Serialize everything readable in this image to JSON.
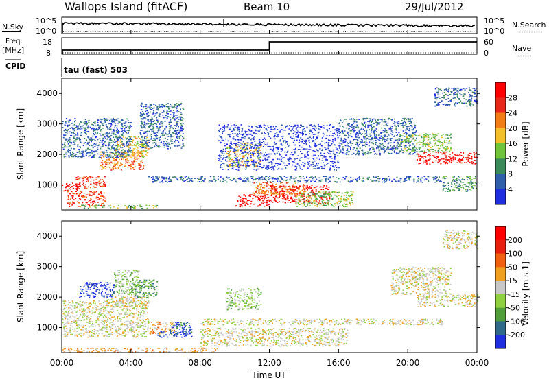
{
  "header": {
    "station": "Wallops Island (fitACF)",
    "beam": "Beam 10",
    "date": "29/Jul/2012"
  },
  "status_panels": {
    "nsky": {
      "label": "N.Sky",
      "left_ticks": [
        "10^5",
        "10^0"
      ],
      "right_label": "N.Search",
      "right_ticks": [
        "10^5",
        "10^0"
      ]
    },
    "freq": {
      "label": "Freq.",
      "unit": "[MHz]",
      "left_ticks": [
        "18",
        "8"
      ],
      "right_label": "Nave",
      "right_ticks": [
        "60",
        "0"
      ]
    },
    "cpid": {
      "label": "CPID",
      "value": "tau (fast) 503"
    }
  },
  "x_axis": {
    "label": "Time UT",
    "ticks": [
      "00:00",
      "04:00",
      "08:00",
      "12:00",
      "16:00",
      "20:00",
      "00:00"
    ]
  },
  "chart_data": [
    {
      "type": "heatmap",
      "name": "power",
      "ylabel": "Slant Range [km]",
      "yticks": [
        "1000",
        "2000",
        "3000",
        "4000"
      ],
      "ylim": [
        180,
        4500
      ],
      "xlim": [
        0,
        24
      ],
      "colorbar": {
        "label": "Power [dB]",
        "ticks": [
          "4",
          "8",
          "12",
          "16",
          "20",
          "24",
          "28"
        ],
        "colors": [
          "#1f2fe0",
          "#2f5fa8",
          "#3a8a5a",
          "#6fc43a",
          "#f2c02a",
          "#f07d16",
          "#e8281a",
          "#ff0000"
        ]
      },
      "frequency_mhz": [
        [
          0,
          10.5
        ],
        [
          12,
          15.5
        ],
        [
          24,
          15.5
        ]
      ],
      "nave": [
        [
          0,
          5
        ],
        [
          24,
          5
        ]
      ],
      "regions": [
        {
          "t0": 0.0,
          "t1": 1.0,
          "r0": 800,
          "r1": 1100,
          "level": 7
        },
        {
          "t0": 0.8,
          "t1": 2.5,
          "r0": 900,
          "r1": 1300,
          "level": 6
        },
        {
          "t0": 2.2,
          "t1": 4.7,
          "r0": 1500,
          "r1": 2100,
          "level": 5
        },
        {
          "t0": 3.0,
          "t1": 5.0,
          "r0": 1900,
          "r1": 2600,
          "level": 4
        },
        {
          "t0": 0.3,
          "t1": 2.5,
          "r0": 300,
          "r1": 800,
          "level": 6
        },
        {
          "t0": 0.0,
          "t1": 4.0,
          "r0": 1900,
          "r1": 3200,
          "level": 1
        },
        {
          "t0": 1.0,
          "t1": 5.5,
          "r0": 250,
          "r1": 350,
          "level": 3
        },
        {
          "t0": 4.5,
          "t1": 7.0,
          "r0": 2200,
          "r1": 3700,
          "level": 1
        },
        {
          "t0": 9.5,
          "t1": 11.5,
          "r0": 1600,
          "r1": 2400,
          "level": 4
        },
        {
          "t0": 10.0,
          "t1": 12.0,
          "r0": 300,
          "r1": 700,
          "level": 7
        },
        {
          "t0": 12.0,
          "t1": 15.5,
          "r0": 400,
          "r1": 1000,
          "level": 7
        },
        {
          "t0": 11.0,
          "t1": 14.0,
          "r0": 700,
          "r1": 1100,
          "level": 5
        },
        {
          "t0": 13.5,
          "t1": 16.8,
          "r0": 300,
          "r1": 800,
          "level": 3
        },
        {
          "t0": 5.0,
          "t1": 22.0,
          "r0": 1100,
          "r1": 1300,
          "level": 1
        },
        {
          "t0": 16.0,
          "t1": 20.5,
          "r0": 2000,
          "r1": 3200,
          "level": 1
        },
        {
          "t0": 20.5,
          "t1": 24.0,
          "r0": 1700,
          "r1": 2100,
          "level": 7
        },
        {
          "t0": 19.5,
          "t1": 22.5,
          "r0": 2100,
          "r1": 2700,
          "level": 3
        },
        {
          "t0": 22.0,
          "t1": 24.0,
          "r0": 800,
          "r1": 1300,
          "level": 2
        },
        {
          "t0": 21.5,
          "t1": 24.0,
          "r0": 3600,
          "r1": 4200,
          "level": 1
        },
        {
          "t0": 9.0,
          "t1": 16.0,
          "r0": 1500,
          "r1": 3000,
          "level": 0
        }
      ]
    },
    {
      "type": "heatmap",
      "name": "velocity",
      "ylabel": "Slant Range [km]",
      "yticks": [
        "1000",
        "2000",
        "3000",
        "4000"
      ],
      "ylim": [
        180,
        4500
      ],
      "xlim": [
        0,
        24
      ],
      "colorbar": {
        "label": "Velocity [m s-1]",
        "ticks": [
          "200",
          "100",
          "50",
          "15",
          "-15",
          "-50",
          "-100",
          "-200"
        ],
        "colors": [
          "#1f2fe0",
          "#2f6a8a",
          "#4f9e3a",
          "#8fd040",
          "#c8c8c8",
          "#f0a020",
          "#f06010",
          "#e82010",
          "#ff0000"
        ]
      },
      "regions": [
        {
          "t0": 0.0,
          "t1": 5.0,
          "r0": 700,
          "r1": 1900,
          "level": 4
        },
        {
          "t0": 2.5,
          "t1": 5.0,
          "r0": 1700,
          "r1": 2100,
          "level": 4
        },
        {
          "t0": 1.0,
          "t1": 3.0,
          "r0": 2000,
          "r1": 2500,
          "level": 0
        },
        {
          "t0": 3.0,
          "t1": 4.5,
          "r0": 2100,
          "r1": 2900,
          "level": 3
        },
        {
          "t0": 5.0,
          "t1": 6.5,
          "r0": 800,
          "r1": 1200,
          "level": 5
        },
        {
          "t0": 6.2,
          "t1": 7.5,
          "r0": 800,
          "r1": 1200,
          "level": 1
        },
        {
          "t0": 5.5,
          "t1": 7.5,
          "r0": 700,
          "r1": 900,
          "level": 0
        },
        {
          "t0": 4.0,
          "t1": 5.5,
          "r0": 2000,
          "r1": 2600,
          "level": 2
        },
        {
          "t0": 8.0,
          "t1": 16.5,
          "r0": 400,
          "r1": 1000,
          "level": 4
        },
        {
          "t0": 8.0,
          "t1": 22.0,
          "r0": 1100,
          "r1": 1300,
          "level": 4
        },
        {
          "t0": 9.5,
          "t1": 11.5,
          "r0": 1600,
          "r1": 2300,
          "level": 3
        },
        {
          "t0": 20.5,
          "t1": 24.0,
          "r0": 1700,
          "r1": 2100,
          "level": 4
        },
        {
          "t0": 19.0,
          "t1": 22.5,
          "r0": 2100,
          "r1": 3000,
          "level": 4
        },
        {
          "t0": 22.0,
          "t1": 24.0,
          "r0": 3600,
          "r1": 4200,
          "level": 4
        },
        {
          "t0": 0.0,
          "t1": 9.0,
          "r0": 200,
          "r1": 350,
          "level": 5
        }
      ]
    }
  ]
}
